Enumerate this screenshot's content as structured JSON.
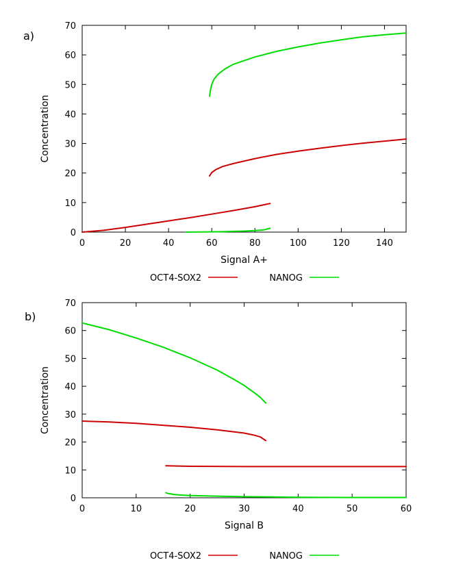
{
  "chart_data": [
    {
      "type": "line",
      "panel_label": "a)",
      "xlabel": "Signal A+",
      "ylabel": "Concentration",
      "xlim": [
        0,
        150
      ],
      "ylim": [
        0,
        70
      ],
      "xticks": [
        0,
        20,
        40,
        60,
        80,
        100,
        120,
        140
      ],
      "yticks": [
        0,
        10,
        20,
        30,
        40,
        50,
        60,
        70
      ],
      "grid": false,
      "legend": {
        "placement": "bottom",
        "entries": [
          {
            "label": "OCT4-SOX2",
            "color": "#cc0000"
          },
          {
            "label": "NANOG",
            "color": "#00dd00"
          }
        ]
      },
      "series": [
        {
          "name": "OCT4-SOX2",
          "color": "#cc0000",
          "segments": [
            {
              "x": [
                0,
                10,
                20,
                30,
                40,
                50,
                60,
                70,
                80,
                87
              ],
              "y": [
                0,
                0.6,
                1.6,
                2.7,
                3.8,
                4.9,
                6.1,
                7.3,
                8.6,
                9.7
              ]
            },
            {
              "x": [
                59,
                60,
                62,
                65,
                70,
                80,
                90,
                100,
                110,
                120,
                130,
                140,
                150
              ],
              "y": [
                19,
                20.2,
                21.2,
                22.2,
                23.2,
                24.9,
                26.3,
                27.4,
                28.4,
                29.3,
                30.1,
                30.8,
                31.5
              ]
            }
          ]
        },
        {
          "name": "NANOG",
          "color": "#00dd00",
          "segments": [
            {
              "x": [
                48,
                55,
                60,
                65,
                70,
                75,
                80,
                84,
                87
              ],
              "y": [
                0,
                0.05,
                0.1,
                0.15,
                0.25,
                0.35,
                0.5,
                0.75,
                1.3
              ]
            },
            {
              "x": [
                59,
                59.5,
                60,
                61,
                63,
                66,
                70,
                80,
                90,
                100,
                110,
                120,
                130,
                140,
                150
              ],
              "y": [
                46,
                48.5,
                50,
                51.8,
                53.5,
                55.2,
                56.8,
                59.3,
                61.2,
                62.7,
                64,
                65.1,
                66.1,
                66.8,
                67.4
              ]
            }
          ]
        }
      ]
    },
    {
      "type": "line",
      "panel_label": "b)",
      "xlabel": "Signal B",
      "ylabel": "Concentration",
      "xlim": [
        0,
        60
      ],
      "ylim": [
        0,
        70
      ],
      "xticks": [
        0,
        10,
        20,
        30,
        40,
        50,
        60
      ],
      "yticks": [
        0,
        10,
        20,
        30,
        40,
        50,
        60,
        70
      ],
      "grid": false,
      "legend": {
        "placement": "bottom",
        "entries": [
          {
            "label": "OCT4-SOX2",
            "color": "#cc0000"
          },
          {
            "label": "NANOG",
            "color": "#00dd00"
          }
        ]
      },
      "series": [
        {
          "name": "OCT4-SOX2",
          "color": "#cc0000",
          "segments": [
            {
              "x": [
                0,
                5,
                10,
                15,
                20,
                25,
                30,
                32,
                33,
                34
              ],
              "y": [
                27.5,
                27.2,
                26.7,
                26,
                25.3,
                24.4,
                23.2,
                22.4,
                21.8,
                20.5
              ]
            },
            {
              "x": [
                15.5,
                20,
                30,
                40,
                50,
                60
              ],
              "y": [
                11.5,
                11.3,
                11.2,
                11.2,
                11.2,
                11.2
              ]
            }
          ]
        },
        {
          "name": "NANOG",
          "color": "#00dd00",
          "segments": [
            {
              "x": [
                0,
                5,
                10,
                15,
                20,
                25,
                28,
                30,
                32,
                33,
                34
              ],
              "y": [
                62.7,
                60.3,
                57.3,
                54,
                50.2,
                45.8,
                42.6,
                40.3,
                37.5,
                36,
                34
              ]
            },
            {
              "x": [
                15.5,
                16,
                17,
                18,
                20,
                25,
                30,
                40,
                50,
                60
              ],
              "y": [
                1.8,
                1.5,
                1.2,
                1.0,
                0.8,
                0.6,
                0.4,
                0.2,
                0.1,
                0.1
              ]
            }
          ]
        }
      ]
    }
  ]
}
